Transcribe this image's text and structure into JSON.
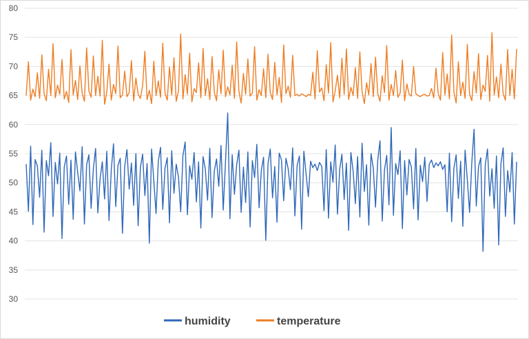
{
  "chart_data": {
    "type": "line",
    "ylim": [
      30,
      80
    ],
    "y_ticks": [
      30,
      35,
      40,
      45,
      50,
      55,
      60,
      65,
      70,
      75,
      80
    ],
    "y_tick_labels": [
      "30",
      "35",
      "40",
      "45",
      "50",
      "55",
      "60",
      "65",
      "70",
      "75",
      "80"
    ],
    "grid": true,
    "legend_position": "bottom-center",
    "series": [
      {
        "name": "humidity",
        "color": "#2e67b8",
        "values": [
          53.2,
          45.1,
          56.3,
          42.8,
          54.0,
          52.9,
          47.5,
          55.6,
          41.5,
          53.8,
          51.2,
          56.9,
          44.2,
          53.5,
          49.8,
          55.1,
          40.4,
          52.7,
          54.6,
          46.3,
          53.9,
          43.7,
          55.3,
          51.8,
          48.6,
          56.2,
          42.9,
          53.1,
          54.8,
          45.6,
          52.4,
          55.9,
          44.8,
          50.7,
          53.6,
          47.2,
          55.4,
          43.5,
          52.2,
          56.7,
          45.9,
          53.0,
          54.2,
          41.3,
          52.8,
          55.7,
          48.9,
          53.4,
          46.1,
          55.0,
          42.6,
          52.6,
          54.9,
          47.8,
          53.3,
          39.6,
          55.8,
          50.3,
          44.7,
          53.7,
          56.1,
          45.4,
          52.5,
          54.3,
          43.1,
          55.5,
          48.2,
          53.2,
          51.0,
          45.0,
          54.7,
          57.0,
          44.5,
          52.9,
          50.6,
          55.2,
          46.7,
          53.6,
          42.2,
          54.5,
          52.3,
          47.0,
          55.9,
          44.0,
          52.0,
          54.1,
          49.4,
          56.4,
          45.3,
          53.5,
          62.0,
          43.8,
          54.8,
          48.0,
          53.1,
          55.6,
          44.9,
          52.7,
          46.6,
          55.3,
          42.4,
          53.8,
          50.9,
          56.6,
          45.7,
          52.1,
          54.4,
          40.1,
          53.3,
          55.8,
          47.4,
          52.8,
          43.2,
          55.1,
          53.9,
          46.9,
          54.2,
          52.4,
          48.8,
          56.0,
          44.3,
          53.0,
          54.6,
          42.0,
          55.4,
          51.5,
          47.6,
          53.7,
          52.6,
          53.2,
          52.1,
          53.5,
          52.8,
          45.2,
          55.7,
          43.9,
          53.6,
          50.1,
          56.5,
          44.6,
          52.3,
          54.9,
          47.1,
          53.4,
          41.8,
          55.2,
          52.0,
          46.4,
          54.5,
          44.1,
          56.8,
          48.5,
          53.1,
          42.7,
          55.0,
          52.5,
          45.8,
          53.9,
          57.2,
          43.4,
          52.2,
          54.7,
          46.2,
          59.5,
          44.4,
          53.3,
          51.4,
          55.5,
          42.1,
          53.8,
          47.9,
          54.0,
          52.7,
          45.5,
          55.9,
          43.6,
          53.0,
          50.2,
          54.4,
          46.8,
          53.2,
          53.9,
          52.6,
          53.4,
          52.9,
          53.6,
          52.3,
          53.1,
          45.0,
          55.1,
          43.3,
          52.5,
          54.8,
          47.3,
          53.7,
          42.5,
          55.6,
          50.5,
          44.9,
          53.5,
          59.2,
          46.0,
          52.8,
          54.3,
          38.2,
          53.0,
          55.8,
          47.7,
          52.4,
          45.6,
          54.6,
          39.3,
          53.3,
          56.0,
          44.2,
          52.1,
          48.4,
          55.2,
          42.9,
          53.6
        ]
      },
      {
        "name": "temperature",
        "color": "#ee7d22",
        "values": [
          65.0,
          70.8,
          64.2,
          66.1,
          64.8,
          68.9,
          64.5,
          72.0,
          65.3,
          64.1,
          69.5,
          65.0,
          73.9,
          64.6,
          66.8,
          65.2,
          71.2,
          64.4,
          65.7,
          63.8,
          72.9,
          65.1,
          67.6,
          64.3,
          70.1,
          65.4,
          64.0,
          73.2,
          65.8,
          64.7,
          71.8,
          65.0,
          68.3,
          64.9,
          74.5,
          63.5,
          65.6,
          70.4,
          64.2,
          66.9,
          65.3,
          73.5,
          64.6,
          65.1,
          69.2,
          64.8,
          65.5,
          71.0,
          64.1,
          68.0,
          65.2,
          64.5,
          66.7,
          72.6,
          64.3,
          65.9,
          63.6,
          70.9,
          65.0,
          67.5,
          64.7,
          74.0,
          65.4,
          64.2,
          69.9,
          65.1,
          71.5,
          64.0,
          65.8,
          75.6,
          64.4,
          68.6,
          65.2,
          72.3,
          63.9,
          66.2,
          65.5,
          70.6,
          64.6,
          73.1,
          65.0,
          67.9,
          64.3,
          71.7,
          65.6,
          64.1,
          69.4,
          65.3,
          72.8,
          64.8,
          66.5,
          65.1,
          70.2,
          64.5,
          74.2,
          65.7,
          63.7,
          68.8,
          65.2,
          71.3,
          64.9,
          65.4,
          73.4,
          64.2,
          66.0,
          65.0,
          69.6,
          64.6,
          72.1,
          65.5,
          64.3,
          70.7,
          65.1,
          68.1,
          63.8,
          73.7,
          65.3,
          66.6,
          64.7,
          71.9,
          65.0,
          65.2,
          64.9,
          65.3,
          65.1,
          64.8,
          65.2,
          65.0,
          69.0,
          64.4,
          72.7,
          65.6,
          66.3,
          64.1,
          70.3,
          65.4,
          74.1,
          63.9,
          65.8,
          68.5,
          64.6,
          71.4,
          65.2,
          73.0,
          64.3,
          66.4,
          65.0,
          69.8,
          64.5,
          72.5,
          65.7,
          63.6,
          67.2,
          65.1,
          70.5,
          64.8,
          71.6,
          65.3,
          64.0,
          68.4,
          65.5,
          73.6,
          64.2,
          66.9,
          65.0,
          69.3,
          64.7,
          65.4,
          71.1,
          64.1,
          67.0,
          65.2,
          64.9,
          70.0,
          65.3,
          65.0,
          64.8,
          65.1,
          65.2,
          64.9,
          65.0,
          66.2,
          64.6,
          69.7,
          65.3,
          64.2,
          72.4,
          65.1,
          68.7,
          64.4,
          75.4,
          65.6,
          63.7,
          70.8,
          65.0,
          67.3,
          64.5,
          73.8,
          65.2,
          64.1,
          69.1,
          65.4,
          72.2,
          64.3,
          66.8,
          65.7,
          71.9,
          64.0,
          75.8,
          65.1,
          68.2,
          64.6,
          70.4,
          65.3,
          64.2,
          72.9,
          65.0,
          69.5,
          64.4,
          73.0
        ]
      }
    ]
  }
}
